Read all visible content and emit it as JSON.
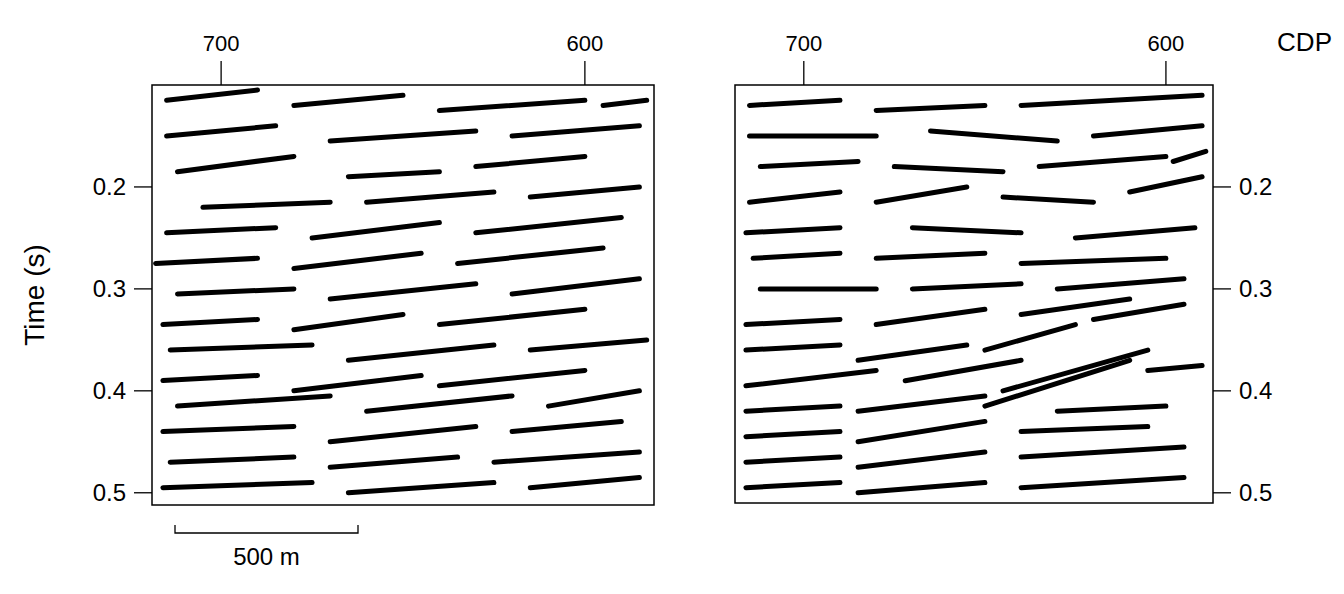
{
  "chart_data": [
    {
      "type": "seismic",
      "y_label": "Time (s)",
      "xlim": [
        719,
        581
      ],
      "xticks": [
        700,
        600
      ],
      "ylim": [
        0.1,
        0.512
      ],
      "yticks": [
        0.2,
        0.3,
        0.4,
        0.5
      ],
      "annotations": [
        "500 m"
      ],
      "color": "#000000",
      "series": [
        {
          "x": [
            715,
            690
          ],
          "values": [
            0.115,
            0.105
          ]
        },
        {
          "x": [
            680,
            650
          ],
          "values": [
            0.12,
            0.11
          ]
        },
        {
          "x": [
            640,
            600
          ],
          "values": [
            0.125,
            0.115
          ]
        },
        {
          "x": [
            595,
            583
          ],
          "values": [
            0.12,
            0.115
          ]
        },
        {
          "x": [
            715,
            685
          ],
          "values": [
            0.15,
            0.14
          ]
        },
        {
          "x": [
            670,
            630
          ],
          "values": [
            0.155,
            0.145
          ]
        },
        {
          "x": [
            620,
            585
          ],
          "values": [
            0.15,
            0.14
          ]
        },
        {
          "x": [
            712,
            680
          ],
          "values": [
            0.185,
            0.17
          ]
        },
        {
          "x": [
            665,
            640
          ],
          "values": [
            0.19,
            0.185
          ]
        },
        {
          "x": [
            630,
            600
          ],
          "values": [
            0.18,
            0.17
          ]
        },
        {
          "x": [
            705,
            670
          ],
          "values": [
            0.22,
            0.215
          ]
        },
        {
          "x": [
            660,
            625
          ],
          "values": [
            0.215,
            0.205
          ]
        },
        {
          "x": [
            615,
            585
          ],
          "values": [
            0.21,
            0.2
          ]
        },
        {
          "x": [
            715,
            685
          ],
          "values": [
            0.245,
            0.24
          ]
        },
        {
          "x": [
            675,
            640
          ],
          "values": [
            0.25,
            0.235
          ]
        },
        {
          "x": [
            630,
            590
          ],
          "values": [
            0.245,
            0.23
          ]
        },
        {
          "x": [
            718,
            690
          ],
          "values": [
            0.275,
            0.27
          ]
        },
        {
          "x": [
            680,
            645
          ],
          "values": [
            0.28,
            0.265
          ]
        },
        {
          "x": [
            635,
            595
          ],
          "values": [
            0.275,
            0.26
          ]
        },
        {
          "x": [
            712,
            680
          ],
          "values": [
            0.305,
            0.3
          ]
        },
        {
          "x": [
            670,
            630
          ],
          "values": [
            0.31,
            0.295
          ]
        },
        {
          "x": [
            620,
            585
          ],
          "values": [
            0.305,
            0.29
          ]
        },
        {
          "x": [
            716,
            690
          ],
          "values": [
            0.335,
            0.33
          ]
        },
        {
          "x": [
            680,
            650
          ],
          "values": [
            0.34,
            0.325
          ]
        },
        {
          "x": [
            640,
            600
          ],
          "values": [
            0.335,
            0.32
          ]
        },
        {
          "x": [
            714,
            675
          ],
          "values": [
            0.36,
            0.355
          ]
        },
        {
          "x": [
            665,
            625
          ],
          "values": [
            0.37,
            0.355
          ]
        },
        {
          "x": [
            615,
            583
          ],
          "values": [
            0.36,
            0.35
          ]
        },
        {
          "x": [
            716,
            690
          ],
          "values": [
            0.39,
            0.385
          ]
        },
        {
          "x": [
            680,
            645
          ],
          "values": [
            0.4,
            0.385
          ]
        },
        {
          "x": [
            640,
            600
          ],
          "values": [
            0.395,
            0.38
          ]
        },
        {
          "x": [
            712,
            670
          ],
          "values": [
            0.415,
            0.405
          ]
        },
        {
          "x": [
            660,
            620
          ],
          "values": [
            0.42,
            0.405
          ]
        },
        {
          "x": [
            610,
            585
          ],
          "values": [
            0.415,
            0.4
          ]
        },
        {
          "x": [
            716,
            680
          ],
          "values": [
            0.44,
            0.435
          ]
        },
        {
          "x": [
            670,
            630
          ],
          "values": [
            0.45,
            0.435
          ]
        },
        {
          "x": [
            620,
            590
          ],
          "values": [
            0.44,
            0.43
          ]
        },
        {
          "x": [
            714,
            680
          ],
          "values": [
            0.47,
            0.465
          ]
        },
        {
          "x": [
            670,
            635
          ],
          "values": [
            0.475,
            0.465
          ]
        },
        {
          "x": [
            625,
            585
          ],
          "values": [
            0.47,
            0.46
          ]
        },
        {
          "x": [
            716,
            675
          ],
          "values": [
            0.495,
            0.49
          ]
        },
        {
          "x": [
            665,
            625
          ],
          "values": [
            0.5,
            0.49
          ]
        },
        {
          "x": [
            615,
            585
          ],
          "values": [
            0.495,
            0.485
          ]
        }
      ]
    },
    {
      "type": "seismic",
      "x_label": "CDP",
      "xlim": [
        719,
        587
      ],
      "xticks": [
        700,
        600
      ],
      "ylim": [
        0.1,
        0.51
      ],
      "yticks": [
        0.2,
        0.3,
        0.4,
        0.5
      ],
      "color": "#000000",
      "series": [
        {
          "x": [
            715,
            690
          ],
          "values": [
            0.12,
            0.115
          ]
        },
        {
          "x": [
            680,
            650
          ],
          "values": [
            0.125,
            0.12
          ]
        },
        {
          "x": [
            640,
            590
          ],
          "values": [
            0.12,
            0.11
          ]
        },
        {
          "x": [
            715,
            680
          ],
          "values": [
            0.15,
            0.15
          ]
        },
        {
          "x": [
            665,
            630
          ],
          "values": [
            0.145,
            0.155
          ]
        },
        {
          "x": [
            620,
            590
          ],
          "values": [
            0.15,
            0.14
          ]
        },
        {
          "x": [
            712,
            685
          ],
          "values": [
            0.18,
            0.175
          ]
        },
        {
          "x": [
            675,
            645
          ],
          "values": [
            0.18,
            0.185
          ]
        },
        {
          "x": [
            635,
            600
          ],
          "values": [
            0.18,
            0.17
          ]
        },
        {
          "x": [
            598,
            589
          ],
          "values": [
            0.175,
            0.165
          ]
        },
        {
          "x": [
            715,
            690
          ],
          "values": [
            0.215,
            0.205
          ]
        },
        {
          "x": [
            680,
            655
          ],
          "values": [
            0.215,
            0.2
          ]
        },
        {
          "x": [
            645,
            620
          ],
          "values": [
            0.21,
            0.215
          ]
        },
        {
          "x": [
            610,
            590
          ],
          "values": [
            0.205,
            0.19
          ]
        },
        {
          "x": [
            716,
            690
          ],
          "values": [
            0.245,
            0.24
          ]
        },
        {
          "x": [
            670,
            640
          ],
          "values": [
            0.24,
            0.245
          ]
        },
        {
          "x": [
            625,
            592
          ],
          "values": [
            0.25,
            0.24
          ]
        },
        {
          "x": [
            714,
            690
          ],
          "values": [
            0.27,
            0.265
          ]
        },
        {
          "x": [
            680,
            650
          ],
          "values": [
            0.27,
            0.265
          ]
        },
        {
          "x": [
            640,
            600
          ],
          "values": [
            0.275,
            0.27
          ]
        },
        {
          "x": [
            712,
            680
          ],
          "values": [
            0.3,
            0.3
          ]
        },
        {
          "x": [
            670,
            640
          ],
          "values": [
            0.3,
            0.295
          ]
        },
        {
          "x": [
            630,
            595
          ],
          "values": [
            0.3,
            0.29
          ]
        },
        {
          "x": [
            716,
            690
          ],
          "values": [
            0.335,
            0.33
          ]
        },
        {
          "x": [
            680,
            650
          ],
          "values": [
            0.335,
            0.32
          ]
        },
        {
          "x": [
            640,
            610
          ],
          "values": [
            0.325,
            0.31
          ]
        },
        {
          "x": [
            716,
            690
          ],
          "values": [
            0.36,
            0.355
          ]
        },
        {
          "x": [
            685,
            655
          ],
          "values": [
            0.37,
            0.355
          ]
        },
        {
          "x": [
            650,
            625
          ],
          "values": [
            0.36,
            0.335
          ]
        },
        {
          "x": [
            620,
            595
          ],
          "values": [
            0.33,
            0.315
          ]
        },
        {
          "x": [
            716,
            680
          ],
          "values": [
            0.395,
            0.38
          ]
        },
        {
          "x": [
            672,
            640
          ],
          "values": [
            0.39,
            0.37
          ]
        },
        {
          "x": [
            645,
            605
          ],
          "values": [
            0.4,
            0.36
          ]
        },
        {
          "x": [
            650,
            610
          ],
          "values": [
            0.415,
            0.37
          ]
        },
        {
          "x": [
            605,
            590
          ],
          "values": [
            0.38,
            0.375
          ]
        },
        {
          "x": [
            716,
            690
          ],
          "values": [
            0.42,
            0.415
          ]
        },
        {
          "x": [
            685,
            650
          ],
          "values": [
            0.42,
            0.405
          ]
        },
        {
          "x": [
            630,
            600
          ],
          "values": [
            0.42,
            0.415
          ]
        },
        {
          "x": [
            716,
            690
          ],
          "values": [
            0.445,
            0.44
          ]
        },
        {
          "x": [
            685,
            650
          ],
          "values": [
            0.45,
            0.43
          ]
        },
        {
          "x": [
            640,
            605
          ],
          "values": [
            0.44,
            0.435
          ]
        },
        {
          "x": [
            716,
            690
          ],
          "values": [
            0.47,
            0.465
          ]
        },
        {
          "x": [
            685,
            650
          ],
          "values": [
            0.475,
            0.46
          ]
        },
        {
          "x": [
            640,
            595
          ],
          "values": [
            0.465,
            0.455
          ]
        },
        {
          "x": [
            716,
            690
          ],
          "values": [
            0.495,
            0.49
          ]
        },
        {
          "x": [
            685,
            650
          ],
          "values": [
            0.5,
            0.49
          ]
        },
        {
          "x": [
            640,
            595
          ],
          "values": [
            0.495,
            0.485
          ]
        }
      ]
    }
  ]
}
